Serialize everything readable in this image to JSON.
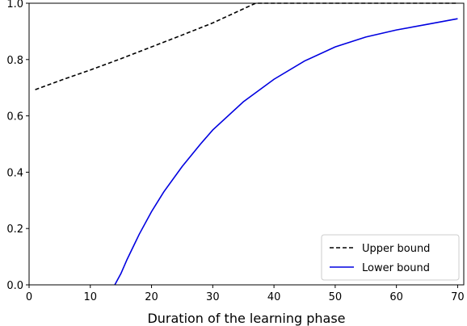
{
  "chart_data": {
    "type": "line",
    "title": "",
    "xlabel": "Duration of the learning phase",
    "ylabel": "",
    "xlim": [
      0,
      71
    ],
    "ylim": [
      0,
      1.0
    ],
    "x_ticks": [
      0,
      10,
      20,
      30,
      40,
      50,
      60,
      70
    ],
    "y_ticks": [
      0.0,
      0.2,
      0.4,
      0.6,
      0.8,
      1.0
    ],
    "x_tick_labels": [
      "0",
      "10",
      "20",
      "30",
      "40",
      "50",
      "60",
      "70"
    ],
    "y_tick_labels": [
      "0.0",
      "0.2",
      "0.4",
      "0.6",
      "0.8",
      "1.0"
    ],
    "grid": false,
    "legend_position": "bottom-right",
    "series": [
      {
        "name": "Upper bound",
        "color": "#000000",
        "style": "dashed",
        "x": [
          1,
          5,
          10,
          15,
          20,
          25,
          30,
          35,
          37,
          40,
          50,
          60,
          70
        ],
        "y": [
          0.693,
          0.725,
          0.763,
          0.803,
          0.845,
          0.887,
          0.93,
          0.98,
          1.0,
          1.0,
          1.0,
          1.0,
          1.0
        ]
      },
      {
        "name": "Lower bound",
        "color": "#0000e0",
        "style": "solid",
        "x": [
          14,
          15,
          16,
          17,
          18,
          20,
          22,
          25,
          28,
          30,
          35,
          40,
          45,
          50,
          55,
          60,
          65,
          70
        ],
        "y": [
          0.0,
          0.04,
          0.09,
          0.135,
          0.18,
          0.26,
          0.33,
          0.42,
          0.5,
          0.55,
          0.65,
          0.73,
          0.795,
          0.845,
          0.88,
          0.905,
          0.925,
          0.945
        ]
      }
    ]
  }
}
